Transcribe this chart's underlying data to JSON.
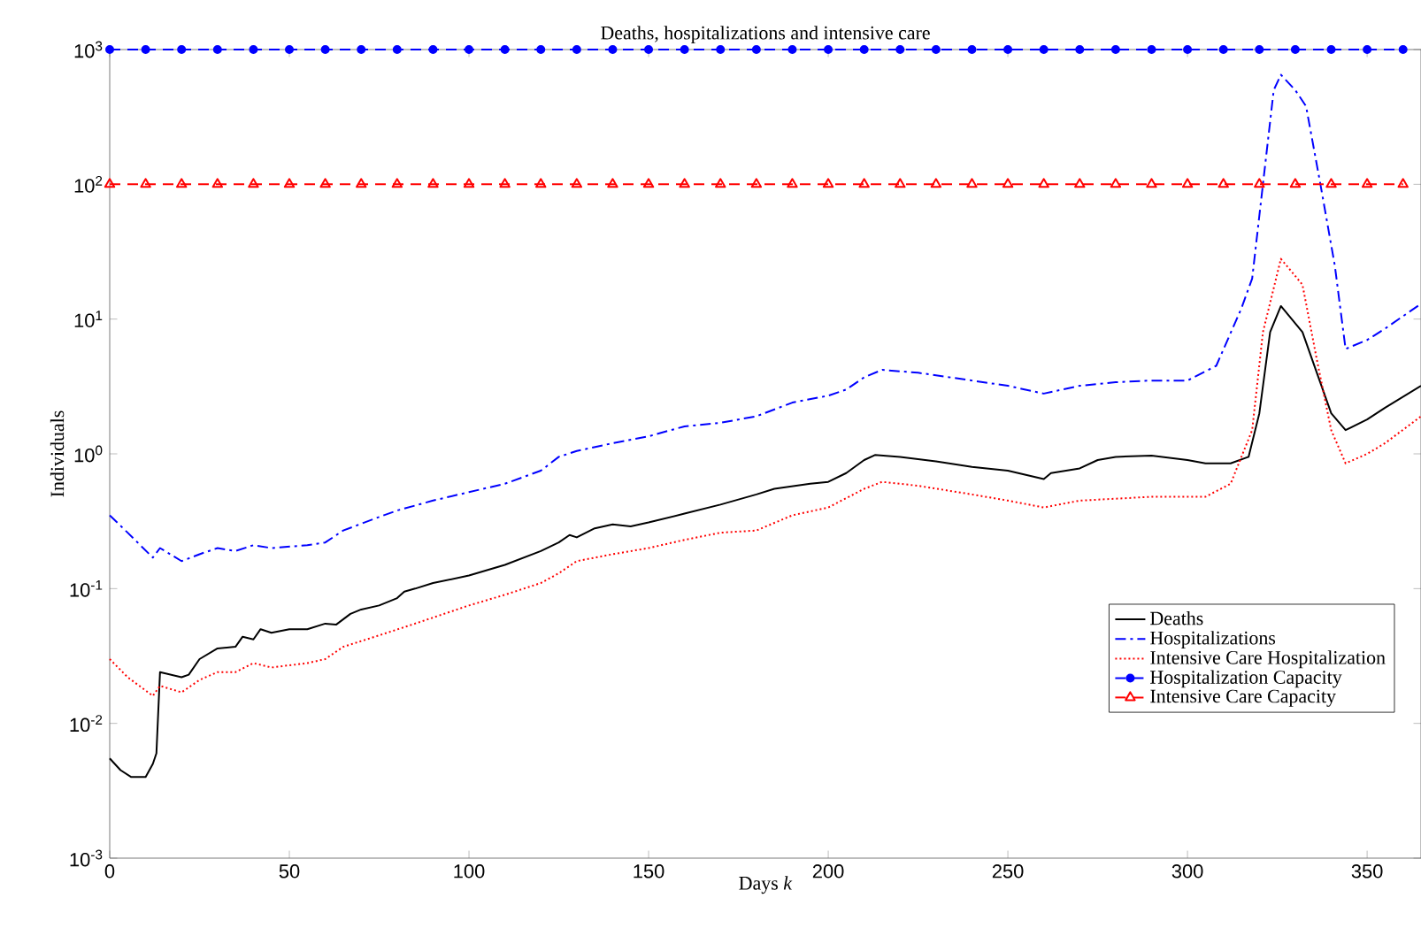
{
  "chart_data": {
    "type": "line",
    "title": "Deaths, hospitalizations and intensive care",
    "xlabel": "Days *k*",
    "ylabel": "Individuals",
    "log": "y",
    "legend": "bottom right",
    "xlim": [
      0,
      365
    ],
    "xticks": [
      0,
      50,
      100,
      150,
      200,
      250,
      300,
      350
    ],
    "ylim": [
      0.001,
      1000
    ],
    "yticks": [
      {
        "value": 0.001,
        "label": "10$^{-3}$"
      },
      {
        "value": 0.01,
        "label": "10$^{-2}$"
      },
      {
        "value": 0.1,
        "label": "10$^{-1}$"
      },
      {
        "value": 1,
        "label": "10$^{0}$"
      },
      {
        "value": 10,
        "label": "10$^{1}$"
      },
      {
        "value": 100,
        "label": "10$^{2}$"
      },
      {
        "value": 1000,
        "label": "10$^{3}$"
      }
    ],
    "series": [
      {
        "name": "Deaths",
        "color": "#000000",
        "line_style": "solid",
        "marker": "none",
        "x": [
          0,
          3,
          6,
          10,
          12,
          13,
          14,
          20,
          22,
          25,
          30,
          35,
          37,
          40,
          42,
          45,
          50,
          55,
          60,
          63,
          67,
          70,
          75,
          80,
          82,
          85,
          90,
          100,
          110,
          120,
          125,
          128,
          130,
          135,
          140,
          145,
          150,
          160,
          170,
          180,
          185,
          195,
          200,
          205,
          210,
          213,
          220,
          230,
          240,
          250,
          260,
          262,
          270,
          275,
          280,
          290,
          300,
          305,
          312,
          317,
          320,
          323,
          326,
          332,
          336,
          340,
          344,
          350,
          355,
          365
        ],
        "values": [
          0.0055,
          0.0045,
          0.004,
          0.004,
          0.005,
          0.006,
          0.024,
          0.022,
          0.023,
          0.03,
          0.036,
          0.037,
          0.044,
          0.042,
          0.05,
          0.047,
          0.05,
          0.05,
          0.055,
          0.054,
          0.065,
          0.07,
          0.075,
          0.085,
          0.095,
          0.1,
          0.11,
          0.125,
          0.15,
          0.19,
          0.22,
          0.25,
          0.24,
          0.28,
          0.3,
          0.29,
          0.31,
          0.36,
          0.42,
          0.5,
          0.55,
          0.6,
          0.62,
          0.72,
          0.9,
          0.98,
          0.95,
          0.88,
          0.8,
          0.75,
          0.65,
          0.72,
          0.78,
          0.9,
          0.95,
          0.97,
          0.9,
          0.85,
          0.85,
          0.95,
          2,
          8,
          12.5,
          8,
          4,
          2,
          1.5,
          1.8,
          2.2,
          3.2
        ]
      },
      {
        "name": "Hospitalizations",
        "color": "#0000ff",
        "line_style": "dashdot",
        "marker": "none",
        "x": [
          0,
          5,
          12,
          14,
          20,
          25,
          30,
          35,
          40,
          45,
          55,
          60,
          65,
          75,
          80,
          90,
          100,
          110,
          120,
          125,
          130,
          140,
          150,
          160,
          170,
          180,
          190,
          200,
          205,
          210,
          215,
          225,
          240,
          250,
          260,
          270,
          280,
          290,
          300,
          308,
          315,
          318,
          321,
          324,
          326,
          330,
          333,
          337,
          341,
          344,
          350,
          355,
          365
        ],
        "values": [
          0.35,
          0.26,
          0.17,
          0.2,
          0.16,
          0.18,
          0.2,
          0.19,
          0.21,
          0.2,
          0.21,
          0.22,
          0.27,
          0.34,
          0.38,
          0.45,
          0.52,
          0.6,
          0.75,
          0.95,
          1.05,
          1.2,
          1.35,
          1.6,
          1.7,
          1.9,
          2.4,
          2.7,
          3.0,
          3.7,
          4.2,
          4.0,
          3.5,
          3.2,
          2.8,
          3.2,
          3.4,
          3.5,
          3.5,
          4.5,
          12,
          20,
          100,
          500,
          650,
          500,
          380,
          100,
          25,
          6,
          7,
          8.5,
          13
        ]
      },
      {
        "name": "Intensive Care Hospitalization",
        "color": "#ff0000",
        "line_style": "dotted",
        "marker": "none",
        "x": [
          0,
          5,
          12,
          14,
          20,
          25,
          30,
          35,
          40,
          45,
          55,
          60,
          65,
          75,
          85,
          100,
          110,
          120,
          125,
          130,
          140,
          150,
          160,
          170,
          180,
          190,
          200,
          210,
          215,
          225,
          240,
          250,
          260,
          270,
          290,
          305,
          312,
          318,
          321,
          326,
          332,
          336,
          340,
          344,
          350,
          355,
          365
        ],
        "values": [
          0.03,
          0.022,
          0.016,
          0.019,
          0.017,
          0.021,
          0.024,
          0.024,
          0.028,
          0.026,
          0.028,
          0.03,
          0.037,
          0.045,
          0.055,
          0.075,
          0.09,
          0.11,
          0.13,
          0.16,
          0.18,
          0.2,
          0.23,
          0.26,
          0.27,
          0.35,
          0.4,
          0.55,
          0.62,
          0.58,
          0.5,
          0.45,
          0.4,
          0.45,
          0.48,
          0.48,
          0.6,
          1.5,
          8,
          28,
          18,
          5,
          1.5,
          0.85,
          1.0,
          1.2,
          1.9
        ]
      },
      {
        "name": "Hospitalization Capacity",
        "color": "#0000ff",
        "line_style": "dashed",
        "marker": "circle",
        "x": [
          0,
          10,
          20,
          30,
          40,
          50,
          60,
          70,
          80,
          90,
          100,
          110,
          120,
          130,
          140,
          150,
          160,
          170,
          180,
          190,
          200,
          210,
          220,
          230,
          240,
          250,
          260,
          270,
          280,
          290,
          300,
          310,
          320,
          330,
          340,
          350,
          360
        ],
        "values": [
          1000,
          1000,
          1000,
          1000,
          1000,
          1000,
          1000,
          1000,
          1000,
          1000,
          1000,
          1000,
          1000,
          1000,
          1000,
          1000,
          1000,
          1000,
          1000,
          1000,
          1000,
          1000,
          1000,
          1000,
          1000,
          1000,
          1000,
          1000,
          1000,
          1000,
          1000,
          1000,
          1000,
          1000,
          1000,
          1000,
          1000
        ]
      },
      {
        "name": "Intensive Care Capacity",
        "color": "#ff0000",
        "line_style": "dashed",
        "marker": "triangle",
        "x": [
          0,
          10,
          20,
          30,
          40,
          50,
          60,
          70,
          80,
          90,
          100,
          110,
          120,
          130,
          140,
          150,
          160,
          170,
          180,
          190,
          200,
          210,
          220,
          230,
          240,
          250,
          260,
          270,
          280,
          290,
          300,
          310,
          320,
          330,
          340,
          350,
          360
        ],
        "values": [
          100,
          100,
          100,
          100,
          100,
          100,
          100,
          100,
          100,
          100,
          100,
          100,
          100,
          100,
          100,
          100,
          100,
          100,
          100,
          100,
          100,
          100,
          100,
          100,
          100,
          100,
          100,
          100,
          100,
          100,
          100,
          100,
          100,
          100,
          100,
          100,
          100
        ]
      }
    ]
  }
}
